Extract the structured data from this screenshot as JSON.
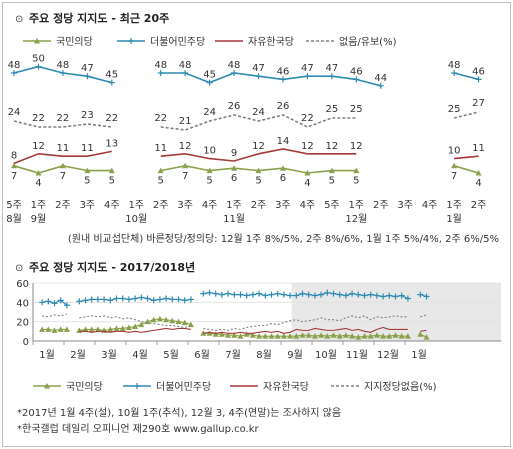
{
  "chart_data": [
    {
      "type": "line",
      "title": "주요 정당 지지도 - 최근 20주",
      "symbol": "⊙",
      "categories": [
        [
          "5주",
          "8월"
        ],
        [
          "1주",
          "9월"
        ],
        [
          "2주",
          ""
        ],
        [
          "3주",
          ""
        ],
        [
          "4주",
          ""
        ],
        [
          "1주",
          "10월"
        ],
        [
          "2주",
          ""
        ],
        [
          "3주",
          ""
        ],
        [
          "4주",
          ""
        ],
        [
          "1주",
          "11월"
        ],
        [
          "2주",
          ""
        ],
        [
          "3주",
          ""
        ],
        [
          "4주",
          ""
        ],
        [
          "5주",
          ""
        ],
        [
          "1주",
          "12월"
        ],
        [
          "2주",
          ""
        ],
        [
          "3주",
          ""
        ],
        [
          "4주",
          ""
        ],
        [
          "1주",
          "1월"
        ],
        [
          "2주",
          ""
        ]
      ],
      "series": [
        {
          "name": "국민의당",
          "color": "#8aa04a",
          "marker": "triangle",
          "values": [
            7,
            4,
            7,
            5,
            5,
            null,
            5,
            7,
            5,
            6,
            5,
            6,
            4,
            5,
            5,
            null,
            null,
            null,
            7,
            4
          ],
          "labels": [
            "7",
            "4",
            "7",
            "5",
            "5",
            "",
            "5",
            "7",
            "5",
            "6",
            "5",
            "6",
            "4",
            "5",
            "5",
            "",
            "",
            "",
            "7",
            "4"
          ]
        },
        {
          "name": "더불어민주당",
          "color": "#2e8ab2",
          "marker": "plus",
          "values": [
            48,
            50,
            48,
            47,
            45,
            null,
            48,
            48,
            45,
            48,
            47,
            46,
            47,
            47,
            46,
            44,
            null,
            null,
            48,
            46
          ],
          "labels": [
            "48",
            "50",
            "48",
            "47",
            "45",
            "",
            "48",
            "48",
            "45",
            "48",
            "47",
            "46",
            "47",
            "47",
            "46",
            "44",
            "",
            "",
            "48",
            "46"
          ]
        },
        {
          "name": "자유한국당",
          "color": "#a33a3a",
          "marker": "none",
          "values": [
            8,
            12,
            11,
            11,
            13,
            null,
            11,
            12,
            10,
            9,
            12,
            14,
            12,
            12,
            12,
            null,
            null,
            null,
            10,
            11
          ],
          "labels": [
            "8",
            "12",
            "11",
            "11",
            "13",
            "",
            "11",
            "12",
            "10",
            "9",
            "12",
            "14",
            "12",
            "12",
            "12",
            "",
            "",
            "",
            "10",
            "11"
          ]
        },
        {
          "name": "없음/유보(%)",
          "color": "#808080",
          "marker": "none",
          "dashed": true,
          "values": [
            24,
            22,
            22,
            23,
            22,
            null,
            22,
            21,
            24,
            26,
            24,
            26,
            22,
            25,
            25,
            null,
            null,
            null,
            25,
            27
          ],
          "labels": [
            "24",
            "22",
            "22",
            "23",
            "22",
            "",
            "22",
            "21",
            "24",
            "26",
            "24",
            "26",
            "22",
            "25",
            "25",
            "",
            "",
            "",
            "25",
            "27"
          ]
        }
      ],
      "note": "(원내 비교섭단체) 바른정당/정의당: 12월 1주 8%/5%, 2주 8%/6%, 1월 1주 5%/4%, 2주 6%/5%"
    },
    {
      "type": "line",
      "title": "주요 정당 지지도 - 2017/2018년",
      "symbol": "⊙",
      "yticks": [
        0,
        20,
        40,
        60
      ],
      "ylim": [
        0,
        60
      ],
      "months": [
        "1월",
        "2월",
        "3월",
        "4월",
        "5월",
        "6월",
        "7월",
        "8월",
        "9월",
        "10월",
        "11월",
        "12월",
        "1월"
      ],
      "shaded_months": [
        "9월",
        "10월",
        "11월",
        "12월",
        "1월"
      ],
      "series": [
        {
          "name": "국민의당",
          "color": "#8aa04a",
          "marker": "triangle",
          "x": [
            0.1,
            0.3,
            0.5,
            0.7,
            0.9,
            1.3,
            1.5,
            1.7,
            1.9,
            2.1,
            2.3,
            2.5,
            2.7,
            2.9,
            3.1,
            3.3,
            3.5,
            3.7,
            3.9,
            4.1,
            4.3,
            4.5,
            4.7,
            4.9,
            5.3,
            5.5,
            5.7,
            5.9,
            6.1,
            6.3,
            6.5,
            6.7,
            6.9,
            7.1,
            7.3,
            7.5,
            7.7,
            7.9,
            8.1,
            8.3,
            8.5,
            8.7,
            8.9,
            9.1,
            9.3,
            9.5,
            9.7,
            9.9,
            10.1,
            10.3,
            10.5,
            10.7,
            10.9,
            11.1,
            11.3,
            11.5,
            11.7,
            11.9,
            12.3,
            12.5
          ],
          "y": [
            12,
            12,
            11,
            12,
            12,
            11,
            12,
            12,
            12,
            11,
            12,
            13,
            13,
            14,
            15,
            17,
            20,
            22,
            23,
            22,
            21,
            20,
            19,
            17,
            8,
            8,
            7,
            7,
            6,
            6,
            5,
            7,
            6,
            5,
            5,
            5,
            5,
            5,
            5,
            5,
            6,
            6,
            5,
            6,
            5,
            6,
            5,
            6,
            5,
            4,
            5,
            5,
            6,
            5,
            5,
            6,
            5,
            5,
            7,
            4
          ]
        },
        {
          "name": "더불어민주당",
          "color": "#2e8ab2",
          "marker": "plus",
          "x": [
            0.1,
            0.3,
            0.5,
            0.7,
            0.9,
            1.3,
            1.5,
            1.7,
            1.9,
            2.1,
            2.3,
            2.5,
            2.7,
            2.9,
            3.1,
            3.3,
            3.5,
            3.7,
            3.9,
            4.1,
            4.3,
            4.5,
            4.7,
            4.9,
            5.3,
            5.5,
            5.7,
            5.9,
            6.1,
            6.3,
            6.5,
            6.7,
            6.9,
            7.1,
            7.3,
            7.5,
            7.7,
            7.9,
            8.1,
            8.3,
            8.5,
            8.7,
            8.9,
            9.1,
            9.3,
            9.5,
            9.7,
            9.9,
            10.1,
            10.3,
            10.5,
            10.7,
            10.9,
            11.1,
            11.3,
            11.5,
            11.7,
            11.9,
            12.3,
            12.5
          ],
          "y": [
            40,
            41,
            39,
            42,
            37,
            41,
            42,
            43,
            43,
            43,
            42,
            44,
            44,
            43,
            44,
            45,
            44,
            42,
            43,
            44,
            43,
            43,
            42,
            43,
            49,
            50,
            49,
            48,
            49,
            48,
            48,
            47,
            48,
            49,
            47,
            48,
            49,
            48,
            47,
            47,
            49,
            48,
            47,
            48,
            50,
            49,
            48,
            47,
            49,
            48,
            47,
            48,
            47,
            46,
            47,
            46,
            47,
            44,
            48,
            46
          ]
        },
        {
          "name": "자유한국당",
          "color": "#a33a3a",
          "marker": "none",
          "x": [
            1.3,
            1.5,
            1.7,
            1.9,
            2.1,
            2.3,
            2.5,
            2.7,
            2.9,
            3.1,
            3.3,
            3.5,
            3.7,
            3.9,
            4.1,
            4.3,
            4.5,
            4.7,
            4.9,
            5.3,
            5.5,
            5.7,
            5.9,
            6.1,
            6.3,
            6.5,
            6.7,
            6.9,
            7.1,
            7.3,
            7.5,
            7.7,
            7.9,
            8.1,
            8.3,
            8.5,
            8.7,
            8.9,
            9.1,
            9.3,
            9.5,
            9.7,
            9.9,
            10.1,
            10.3,
            10.5,
            10.7,
            10.9,
            11.1,
            11.3,
            11.5,
            11.7,
            11.9,
            12.3,
            12.5
          ],
          "y": [
            10,
            10,
            9,
            10,
            10,
            9,
            10,
            10,
            9,
            10,
            9,
            10,
            11,
            12,
            13,
            12,
            13,
            13,
            12,
            8,
            9,
            8,
            9,
            8,
            8,
            9,
            8,
            8,
            9,
            10,
            9,
            10,
            8,
            9,
            12,
            11,
            11,
            13,
            12,
            11,
            11,
            12,
            13,
            11,
            12,
            10,
            9,
            12,
            14,
            12,
            12,
            12,
            12,
            10,
            11
          ]
        },
        {
          "name": "지지정당없음(%)",
          "color": "#808080",
          "marker": "none",
          "dashed": true,
          "x": [
            0.1,
            0.3,
            0.5,
            0.7,
            0.9,
            1.3,
            1.5,
            1.7,
            1.9,
            2.1,
            2.3,
            2.5,
            2.7,
            2.9,
            3.1,
            3.3,
            3.5,
            3.7,
            3.9,
            4.1,
            4.3,
            4.5,
            4.7,
            4.9,
            5.3,
            5.5,
            5.7,
            5.9,
            6.1,
            6.3,
            6.5,
            6.7,
            6.9,
            7.1,
            7.3,
            7.5,
            7.7,
            7.9,
            8.1,
            8.3,
            8.5,
            8.7,
            8.9,
            9.1,
            9.3,
            9.5,
            9.7,
            9.9,
            10.1,
            10.3,
            10.5,
            10.7,
            10.9,
            11.1,
            11.3,
            11.5,
            11.7,
            11.9,
            12.3,
            12.5
          ],
          "y": [
            26,
            25,
            27,
            26,
            28,
            24,
            25,
            26,
            25,
            26,
            24,
            25,
            23,
            24,
            22,
            20,
            19,
            18,
            17,
            16,
            16,
            15,
            14,
            16,
            13,
            12,
            11,
            12,
            11,
            13,
            12,
            14,
            15,
            16,
            16,
            18,
            17,
            19,
            21,
            22,
            20,
            21,
            22,
            24,
            22,
            22,
            21,
            24,
            26,
            24,
            26,
            22,
            25,
            24,
            25,
            26,
            25,
            25,
            25,
            27
          ]
        }
      ]
    }
  ],
  "footnotes": [
    "*2017년 1월 4주(설), 10월 1주(추석), 12월 3, 4주(연말)는 조사하지 않음",
    "*한국갤럽 데일리 오피니언 제290호 www.gallup.co.kr"
  ]
}
